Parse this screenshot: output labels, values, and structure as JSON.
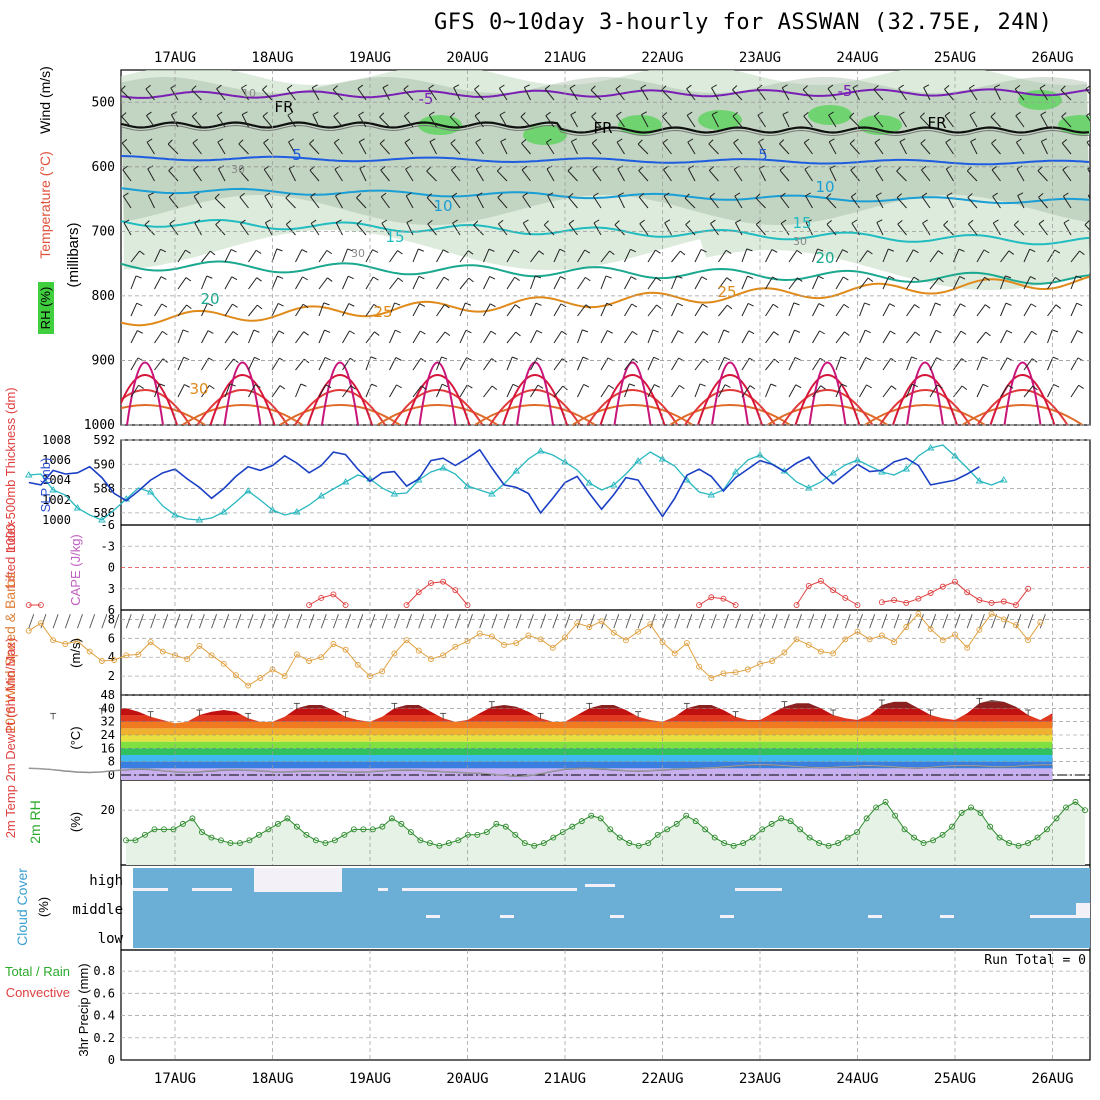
{
  "title": "GFS 0~10day 3-hourly for ASSWAN (32.75E, 24N)",
  "dates": [
    "17AUG",
    "18AUG",
    "19AUG",
    "20AUG",
    "21AUG",
    "22AUG",
    "23AUG",
    "24AUG",
    "25AUG",
    "26AUG"
  ],
  "colors": {
    "temp_warm": "#d6153a",
    "temp_orange": "#e08a1a",
    "temp_teal": "#1aa88f",
    "temp_blue": "#1e5ce0",
    "temp_purple": "#7a1fb5",
    "rh_fill": "#cfe3cf",
    "rh_dark": "#8faa8f",
    "rh_green": "#6fd46f",
    "thickness_line": "#1a3fc4",
    "slp_line": "#2ab8c0",
    "lifted_index": "#e04040",
    "wind_speed": "#e0a040",
    "cloud_fill": "#6baed6",
    "grid": "#aaaaaa"
  },
  "panels": {
    "upper": {
      "ylabel_rh": "RH (%)",
      "ylabel_temp": "Temperature (°C)",
      "ylabel_wind": "Wind (m/s)",
      "ylabel_units": "(millibars)",
      "yticks": [
        "500",
        "600",
        "700",
        "800",
        "900",
        "1000"
      ],
      "contour_labels": [
        "-5",
        "-5",
        "FR",
        "FR",
        "FR",
        "5",
        "5",
        "10",
        "10",
        "15",
        "15",
        "20",
        "20",
        "25",
        "25",
        "30",
        "10",
        "30",
        "30",
        "30"
      ]
    },
    "thickness": {
      "ylabel_left": "1000-500mb Thickness (dm)",
      "ylabel_right": "SLP (mb)",
      "yticks_left": [
        "592",
        "590",
        "588",
        "586"
      ],
      "yticks_right": [
        "1008",
        "1006",
        "1004",
        "1002",
        "1000"
      ]
    },
    "stability": {
      "ylabel_left": "Lifted Index",
      "ylabel_right": "CAPE (J/kg)",
      "yticks": [
        "-6",
        "-3",
        "0",
        "3",
        "6"
      ]
    },
    "wind10m": {
      "ylabel": "10m Wind Speed & Barbs",
      "units": "(m/s)",
      "yticks": [
        "8",
        "6",
        "4",
        "2"
      ]
    },
    "temp2m": {
      "ylabel": "2m Temp 2m DewPt (6hr Min/Max)",
      "units": "(°C)",
      "yticks": [
        "48",
        "40",
        "32",
        "24",
        "16",
        "8",
        "0"
      ]
    },
    "rh2m": {
      "ylabel": "2m RH",
      "units": "(%)",
      "yticks": [
        "20"
      ]
    },
    "cloud": {
      "ylabel": "Cloud Cover",
      "units": "(%)",
      "levels": [
        "high",
        "middle",
        "low"
      ]
    },
    "precip": {
      "ylabel_left": "Total / Rain",
      "ylabel_left2": "Convective",
      "ylabel_units": "3hr Precip (mm)",
      "yticks": [
        "0.8",
        "0.6",
        "0.4",
        "0.2",
        "0"
      ],
      "run_total": "Run Total = 0"
    }
  },
  "chart_data": [
    {
      "type": "line",
      "title": "1000-500mb Thickness (dm) / SLP (mb)",
      "x_start": "16AUG 12Z",
      "x_step_hours": 3,
      "series": [
        {
          "name": "1000-500mb Thickness (dm)",
          "axis": "left",
          "ylim": [
            585,
            592
          ],
          "values": [
            588.5,
            588.3,
            589.5,
            589.2,
            589.3,
            589.8,
            588.9,
            587.6,
            587.0,
            587.8,
            588.7,
            589.3,
            589.6,
            588.8,
            588.1,
            587.2,
            588.0,
            589.0,
            589.8,
            589.5,
            589.9,
            590.7,
            590.1,
            589.3,
            589.9,
            591.0,
            590.8,
            589.6,
            588.6,
            589.3,
            589.4,
            588.2,
            588.8,
            590.3,
            590.5,
            589.9,
            590.5,
            591.2,
            589.7,
            588.3,
            588.1,
            587.6,
            586.0,
            587.2,
            588.5,
            589.0,
            587.6,
            586.3,
            587.5,
            588.9,
            588.7,
            587.2,
            585.7,
            587.2,
            589.1,
            589.6,
            589.0,
            587.8,
            588.9,
            589.6,
            590.3,
            590.0,
            589.4,
            590.1,
            590.6,
            589.3,
            588.4,
            589.2,
            590.0,
            589.4,
            589.5,
            590.2,
            590.5,
            589.9,
            588.3,
            588.5,
            588.7,
            589.2,
            589.8
          ]
        },
        {
          "name": "SLP (mb)",
          "axis": "right",
          "ylim": [
            999.5,
            1008
          ],
          "values": [
            1004.5,
            1004.6,
            1003.0,
            1002.5,
            1001.2,
            1000.5,
            1000.0,
            1001.0,
            1002.1,
            1003.2,
            1002.8,
            1001.4,
            1000.5,
            1000.1,
            1000.0,
            1000.2,
            1000.8,
            1001.8,
            1002.9,
            1002.0,
            1001.0,
            1000.5,
            1000.8,
            1001.5,
            1002.4,
            1003.1,
            1003.8,
            1004.5,
            1004.1,
            1003.2,
            1002.6,
            1002.7,
            1004.0,
            1004.8,
            1005.2,
            1004.6,
            1003.4,
            1003.0,
            1002.6,
            1003.6,
            1004.9,
            1006.1,
            1006.9,
            1006.5,
            1005.8,
            1005.0,
            1003.7,
            1003.0,
            1003.5,
            1004.6,
            1005.9,
            1006.8,
            1006.1,
            1005.4,
            1004.0,
            1002.8,
            1002.5,
            1003.0,
            1004.8,
            1006.0,
            1006.5,
            1005.6,
            1004.9,
            1003.8,
            1003.2,
            1003.8,
            1004.7,
            1005.5,
            1006.0,
            1005.4,
            1004.8,
            1004.5,
            1005.1,
            1006.4,
            1007.2,
            1007.5,
            1006.4,
            1005.2,
            1003.9,
            1003.5,
            1004.0
          ]
        }
      ]
    },
    {
      "type": "line",
      "title": "Lifted Index",
      "x_start": "16AUG 12Z",
      "x_step_hours": 3,
      "ylim_inverted": [
        -6,
        6
      ],
      "segments": [
        {
          "start_index": 0,
          "values": [
            5.3,
            5.3
          ]
        },
        {
          "start_index": 23,
          "values": [
            5.3,
            4.3,
            3.8,
            5.3
          ]
        },
        {
          "start_index": 31,
          "values": [
            5.3,
            3.5,
            2.2,
            2.0,
            3.2,
            5.3
          ]
        },
        {
          "start_index": 55,
          "values": [
            5.3,
            4.2,
            4.4,
            5.3
          ]
        },
        {
          "start_index": 63,
          "values": [
            5.3,
            2.6,
            1.9,
            3.2,
            4.3,
            5.3
          ]
        },
        {
          "start_index": 70,
          "values": [
            4.9,
            4.6,
            5.0,
            4.4,
            3.6,
            2.7,
            2.0,
            3.5,
            4.6,
            5.0,
            4.8,
            5.3,
            3.0
          ]
        }
      ]
    },
    {
      "type": "line",
      "title": "10m Wind Speed & Barbs (m/s)",
      "x_start": "16AUG 12Z",
      "x_step_hours": 3,
      "ylim": [
        0,
        9
      ],
      "values": [
        6.8,
        7.6,
        5.8,
        5.4,
        5.7,
        4.6,
        3.6,
        3.7,
        4.2,
        4.3,
        5.6,
        4.6,
        4.2,
        3.8,
        5.2,
        4.2,
        3.3,
        2.1,
        1.0,
        1.8,
        2.7,
        2.0,
        4.3,
        3.6,
        4.0,
        5.4,
        4.8,
        3.2,
        2.0,
        2.5,
        4.4,
        5.8,
        4.7,
        3.8,
        4.2,
        5.1,
        5.7,
        6.5,
        6.2,
        5.3,
        5.5,
        6.3,
        5.9,
        5.0,
        6.1,
        7.6,
        7.2,
        7.8,
        6.6,
        5.8,
        6.7,
        7.5,
        5.6,
        4.4,
        5.5,
        3.0,
        1.8,
        2.3,
        2.4,
        2.7,
        3.3,
        3.6,
        4.5,
        5.9,
        5.3,
        4.6,
        4.4,
        5.9,
        6.7,
        5.9,
        6.3,
        5.6,
        7.2,
        8.6,
        7.0,
        5.8,
        6.4,
        5.0,
        6.9,
        8.6,
        8.0,
        7.4,
        5.8,
        7.7
      ]
    },
    {
      "type": "area",
      "title": "2m Temp / 2m DewPt (°C)",
      "x_start": "16AUG 12Z",
      "x_step_hours": 3,
      "ylim": [
        -3,
        48
      ],
      "series": [
        {
          "name": "2m Temp",
          "values": [
            36,
            35,
            34,
            32,
            31,
            33,
            37,
            39,
            40,
            38,
            35,
            33,
            31,
            32,
            36,
            38,
            39,
            38,
            34,
            32,
            32,
            35,
            40,
            42,
            42,
            39,
            35,
            33,
            32,
            35,
            40,
            42,
            42,
            38,
            34,
            32,
            33,
            37,
            41,
            42,
            41,
            38,
            34,
            32,
            32,
            36,
            40,
            42,
            42,
            39,
            35,
            33,
            32,
            35,
            40,
            42,
            42,
            39,
            35,
            33,
            33,
            37,
            41,
            43,
            43,
            40,
            36,
            34,
            33,
            36,
            42,
            44,
            44,
            40,
            36,
            34,
            33,
            37,
            43,
            45,
            44,
            41,
            36,
            33,
            37
          ]
        },
        {
          "name": "2m DewPt",
          "values": [
            4.0,
            3.8,
            3.2,
            2.4,
            1.8,
            1.5,
            1.9,
            2.6,
            3.1,
            3.6,
            3.3,
            2.6,
            2.0,
            1.7,
            1.9,
            2.4,
            3.0,
            3.2,
            2.9,
            2.5,
            2.0,
            1.9,
            2.1,
            2.3,
            2.4,
            2.2,
            2.0,
            1.8,
            2.0,
            2.4,
            2.9,
            3.0,
            2.8,
            2.4,
            2.0,
            1.6,
            1.3,
            1.0,
            0.5,
            -0.2,
            -0.8,
            -0.4,
            0.8,
            2.2,
            3.4,
            3.9,
            4.0,
            3.6,
            3.0,
            2.6,
            2.4,
            2.6,
            3.0,
            3.4,
            3.8,
            4.0,
            4.3,
            4.8,
            5.4,
            6.0,
            6.2,
            6.0,
            5.6,
            5.0,
            4.6,
            4.4,
            4.6,
            5.0,
            5.4,
            5.6,
            5.3,
            4.8,
            4.4,
            4.2,
            4.6,
            5.2,
            5.6,
            5.7,
            5.4,
            5.0,
            4.8,
            5.2,
            5.8,
            6.0,
            6.1
          ]
        }
      ]
    },
    {
      "type": "area",
      "title": "2m RH (%)",
      "x_start": "16AUG 12Z",
      "x_step_hours": 3,
      "ylim": [
        0,
        31
      ],
      "values": [
        9,
        9,
        11,
        13,
        13,
        13,
        15,
        17,
        12,
        10,
        9,
        8,
        8,
        9,
        11,
        13,
        15,
        17,
        14,
        11,
        9,
        8,
        9,
        11,
        13,
        13,
        13,
        14,
        17,
        15,
        12,
        9,
        8,
        7,
        8,
        9,
        11,
        11,
        12,
        15,
        14,
        11,
        8,
        7,
        8,
        10,
        12,
        14,
        16,
        18,
        17,
        13,
        10,
        8,
        7,
        8,
        11,
        13,
        15,
        18,
        16,
        13,
        10,
        8,
        7,
        8,
        10,
        13,
        15,
        17,
        16,
        13,
        10,
        8,
        7,
        8,
        10,
        12,
        17,
        21,
        23,
        18,
        13,
        10,
        8,
        9,
        11,
        14,
        19,
        21,
        19,
        14,
        10,
        8,
        7,
        8,
        10,
        13,
        17,
        21,
        23,
        20
      ]
    },
    {
      "type": "heatmap",
      "title": "Cloud Cover (%)",
      "levels": [
        "high",
        "middle",
        "low"
      ],
      "notes": "uniform cover with small gaps; white block on high level around 18AUG"
    },
    {
      "type": "bar",
      "title": "3hr Precip (mm)",
      "ylim": [
        0,
        0.9
      ],
      "values": []
    }
  ]
}
